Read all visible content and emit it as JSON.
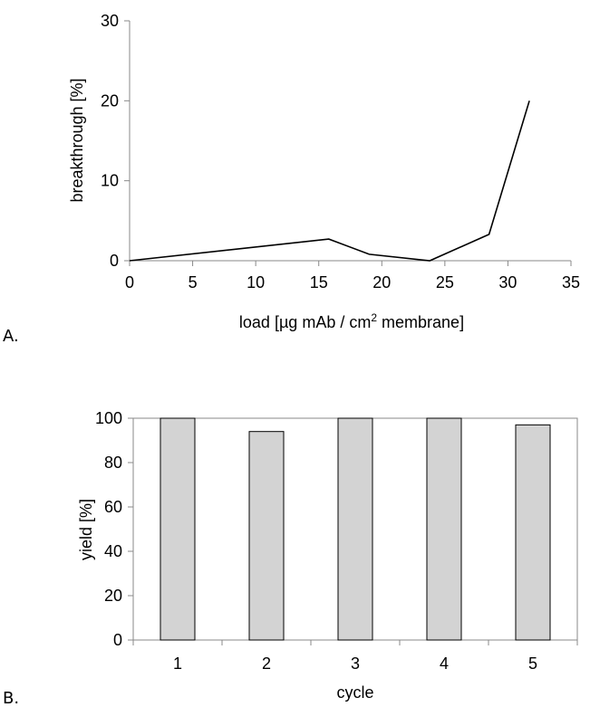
{
  "chart_data": [
    {
      "panel_label": "A.",
      "type": "line",
      "xlabel": "load [µg mAb / cm² membrane]",
      "ylabel": "breakthrough [%]",
      "xlim": [
        0,
        35
      ],
      "ylim": [
        0,
        30
      ],
      "xticks": [
        0,
        5,
        10,
        15,
        20,
        25,
        30,
        35
      ],
      "yticks": [
        0,
        10,
        20,
        30
      ],
      "grid": false,
      "series": [
        {
          "x": [
            0,
            15.8,
            19,
            23.8,
            28.5,
            31.7
          ],
          "y": [
            0,
            2.7,
            0.8,
            0,
            3.3,
            20
          ]
        }
      ]
    },
    {
      "panel_label": "B.",
      "type": "bar",
      "xlabel": "cycle",
      "ylabel": "yield [%]",
      "ylim": [
        0,
        100
      ],
      "yticks": [
        0,
        20,
        40,
        60,
        80,
        100
      ],
      "categories": [
        "1",
        "2",
        "3",
        "4",
        "5"
      ],
      "values": [
        100,
        94,
        100,
        100,
        97
      ],
      "bar_color": "#d3d3d3",
      "grid": false
    }
  ]
}
